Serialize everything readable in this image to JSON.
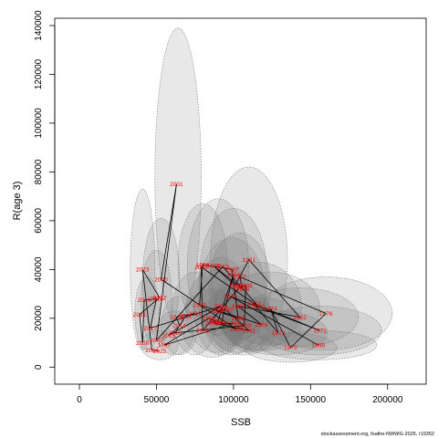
{
  "chart_data": {
    "type": "scatter",
    "xlabel": "SSB",
    "ylabel": "R(age 3)",
    "xlim": [
      -16000,
      225000
    ],
    "ylim": [
      -7000,
      143000
    ],
    "x_ticks": [
      0,
      50000,
      100000,
      150000,
      200000
    ],
    "x_tick_labels": [
      "0",
      "50000",
      "100000",
      "150000",
      "200000"
    ],
    "y_ticks": [
      0,
      20000,
      40000,
      60000,
      80000,
      100000,
      120000,
      140000
    ],
    "y_tick_labels": [
      "0",
      "20000",
      "40000",
      "60000",
      "80000",
      "100000",
      "120000",
      "140000"
    ],
    "grid": false,
    "line_color": "#000000",
    "label_color": "#ff0000",
    "ellipse_fill": "rgba(110,110,110,0.16)",
    "ellipse_stroke": "#7a7a7a",
    "points": [
      {
        "year": "2001",
        "ssb": 63000,
        "r": 75000
      },
      {
        "year": "2023",
        "ssb": 41000,
        "r": 40000
      },
      {
        "year": "2000",
        "ssb": 53000,
        "r": 36000
      },
      {
        "year": "1981",
        "ssb": 110000,
        "r": 44000
      },
      {
        "year": "1986",
        "ssb": 80000,
        "r": 42000
      },
      {
        "year": "2005",
        "ssb": 79000,
        "r": 41000
      },
      {
        "year": "1979",
        "ssb": 87000,
        "r": 41500
      },
      {
        "year": "2003",
        "ssb": 93000,
        "r": 41200
      },
      {
        "year": "1987",
        "ssb": 99000,
        "r": 40000
      },
      {
        "year": "1994",
        "ssb": 100000,
        "r": 38000
      },
      {
        "year": "1977",
        "ssb": 104000,
        "r": 37000
      },
      {
        "year": "1980",
        "ssb": 101000,
        "r": 33500
      },
      {
        "year": "2007",
        "ssb": 104000,
        "r": 32800
      },
      {
        "year": "1978",
        "ssb": 106000,
        "r": 32000
      },
      {
        "year": "2008",
        "ssb": 108000,
        "r": 33500
      },
      {
        "year": "1970",
        "ssb": 98000,
        "r": 29000
      },
      {
        "year": "1972",
        "ssb": 113000,
        "r": 26000
      },
      {
        "year": "2004",
        "ssb": 116000,
        "r": 25000
      },
      {
        "year": "1974",
        "ssb": 124000,
        "r": 24000
      },
      {
        "year": "1983",
        "ssb": 103000,
        "r": 25000
      },
      {
        "year": "1985",
        "ssb": 78000,
        "r": 25500
      },
      {
        "year": "2016",
        "ssb": 92000,
        "r": 25000
      },
      {
        "year": "1989",
        "ssb": 89000,
        "r": 23000
      },
      {
        "year": "1990",
        "ssb": 95000,
        "r": 23500
      },
      {
        "year": "2012",
        "ssb": 75000,
        "r": 22000
      },
      {
        "year": "2019",
        "ssb": 42000,
        "r": 27500
      },
      {
        "year": "2018",
        "ssb": 50000,
        "r": 28000
      },
      {
        "year": "2022",
        "ssb": 52000,
        "r": 28500
      },
      {
        "year": "2021",
        "ssb": 39000,
        "r": 21500
      },
      {
        "year": "2013",
        "ssb": 63000,
        "r": 20500
      },
      {
        "year": "2011",
        "ssb": 69000,
        "r": 21000
      },
      {
        "year": "1998",
        "ssb": 84000,
        "r": 20000
      },
      {
        "year": "1993",
        "ssb": 90000,
        "r": 19000
      },
      {
        "year": "1992",
        "ssb": 86000,
        "r": 18200
      },
      {
        "year": "1995",
        "ssb": 92000,
        "r": 17800
      },
      {
        "year": "1988",
        "ssb": 103000,
        "r": 20000
      },
      {
        "year": "1996",
        "ssb": 100000,
        "r": 18000
      },
      {
        "year": "2009",
        "ssb": 107000,
        "r": 17000
      },
      {
        "year": "1984",
        "ssb": 118000,
        "r": 17500
      },
      {
        "year": "1991",
        "ssb": 110000,
        "r": 15000
      },
      {
        "year": "1999",
        "ssb": 102000,
        "r": 15500
      },
      {
        "year": "1973",
        "ssb": 129000,
        "r": 14000
      },
      {
        "year": "1982",
        "ssb": 143000,
        "r": 20500
      },
      {
        "year": "1976",
        "ssb": 160000,
        "r": 22000
      },
      {
        "year": "1971",
        "ssb": 156000,
        "r": 15000
      },
      {
        "year": "1975",
        "ssb": 137000,
        "r": 8000
      },
      {
        "year": "1968",
        "ssb": 155000,
        "r": 9000
      },
      {
        "year": "2017",
        "ssb": 46000,
        "r": 16000
      },
      {
        "year": "2014",
        "ssb": 65000,
        "r": 17000
      },
      {
        "year": "2006",
        "ssb": 80000,
        "r": 15000
      },
      {
        "year": "2010",
        "ssb": 62000,
        "r": 14000
      },
      {
        "year": "2015",
        "ssb": 58000,
        "r": 13000
      },
      {
        "year": "2002",
        "ssb": 50000,
        "r": 11000
      },
      {
        "year": "2020",
        "ssb": 41000,
        "r": 10000
      },
      {
        "year": "1997",
        "ssb": 55000,
        "r": 9000
      },
      {
        "year": "2024",
        "ssb": 47000,
        "r": 7000
      },
      {
        "year": "2025",
        "ssb": 52000,
        "r": 6500
      }
    ],
    "ellipses": [
      {
        "cx": 64000,
        "cy": 78000,
        "rx": 15000,
        "ry": 61000
      },
      {
        "cx": 41000,
        "cy": 40000,
        "rx": 8000,
        "ry": 33000
      },
      {
        "cx": 110000,
        "cy": 44000,
        "rx": 25000,
        "ry": 38000
      },
      {
        "cx": 90000,
        "cy": 41000,
        "rx": 20000,
        "ry": 28000
      },
      {
        "cx": 100000,
        "cy": 37000,
        "rx": 22000,
        "ry": 28000
      },
      {
        "cx": 80000,
        "cy": 42000,
        "rx": 16000,
        "ry": 25000
      },
      {
        "cx": 99000,
        "cy": 29000,
        "rx": 22000,
        "ry": 24000
      },
      {
        "cx": 116000,
        "cy": 25000,
        "rx": 28000,
        "ry": 18000
      },
      {
        "cx": 124000,
        "cy": 24000,
        "rx": 32000,
        "ry": 15000
      },
      {
        "cx": 92000,
        "cy": 25000,
        "rx": 18000,
        "ry": 20000
      },
      {
        "cx": 89000,
        "cy": 23000,
        "rx": 20000,
        "ry": 17000
      },
      {
        "cx": 104000,
        "cy": 33000,
        "rx": 20000,
        "ry": 22000
      },
      {
        "cx": 86000,
        "cy": 18000,
        "rx": 20000,
        "ry": 14000
      },
      {
        "cx": 103000,
        "cy": 20000,
        "rx": 22000,
        "ry": 14000
      },
      {
        "cx": 160000,
        "cy": 22000,
        "rx": 43000,
        "ry": 15000
      },
      {
        "cx": 156000,
        "cy": 15000,
        "rx": 40000,
        "ry": 10000
      },
      {
        "cx": 143000,
        "cy": 20500,
        "rx": 38000,
        "ry": 12000
      },
      {
        "cx": 137000,
        "cy": 8000,
        "rx": 30000,
        "ry": 6000
      },
      {
        "cx": 155000,
        "cy": 9000,
        "rx": 38000,
        "ry": 6000
      },
      {
        "cx": 129000,
        "cy": 14000,
        "rx": 32000,
        "ry": 9000
      },
      {
        "cx": 53000,
        "cy": 36000,
        "rx": 12000,
        "ry": 25000
      },
      {
        "cx": 50000,
        "cy": 28000,
        "rx": 10000,
        "ry": 20000
      },
      {
        "cx": 44000,
        "cy": 22000,
        "rx": 8000,
        "ry": 15000
      },
      {
        "cx": 65000,
        "cy": 17000,
        "rx": 12000,
        "ry": 12000
      },
      {
        "cx": 75000,
        "cy": 22000,
        "rx": 15000,
        "ry": 17000
      },
      {
        "cx": 52000,
        "cy": 9000,
        "rx": 12000,
        "ry": 6000
      },
      {
        "cx": 118000,
        "cy": 17500,
        "rx": 26000,
        "ry": 11000
      },
      {
        "cx": 107000,
        "cy": 17000,
        "rx": 22000,
        "ry": 12000
      },
      {
        "cx": 62000,
        "cy": 14000,
        "rx": 12000,
        "ry": 9000
      }
    ]
  },
  "credit": "stockassessment.org, fsathe-NWWG-2025, r19352"
}
